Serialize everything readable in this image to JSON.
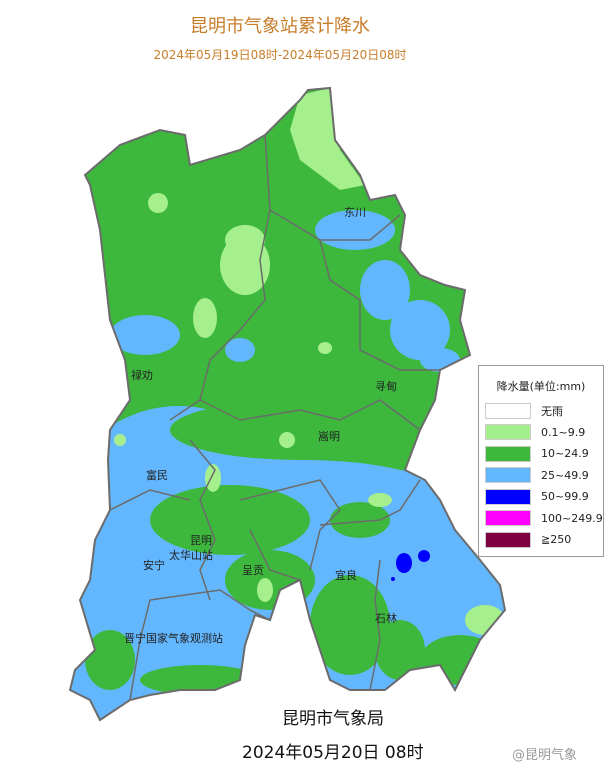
{
  "title": "昆明市气象站累计降水",
  "subtitle": "2024年05月19日08时-2024年05月20日08时",
  "places": [
    "东川",
    "禄劝",
    "寻甸",
    "嵩明",
    "富民",
    "昆明",
    "太华山站",
    "安宁",
    "呈贡",
    "宜良",
    "石林",
    "晋宁国家气象观测站"
  ],
  "legend": {
    "title": "降水量(单位:mm)",
    "items": [
      {
        "label": "无雨",
        "color": "#ffffff"
      },
      {
        "label": "0.1~9.9",
        "color": "#a5f08d"
      },
      {
        "label": "10~24.9",
        "color": "#3db83d"
      },
      {
        "label": "25~49.9",
        "color": "#63b7ff"
      },
      {
        "label": "50~99.9",
        "color": "#0000fe"
      },
      {
        "label": "100~249.9",
        "color": "#ff00ff"
      },
      {
        "label": "≧250",
        "color": "#7f0041"
      }
    ]
  },
  "organization": "昆明市气象局",
  "datetime": "2024年05月20日 08时",
  "watermark": "@昆明气象"
}
